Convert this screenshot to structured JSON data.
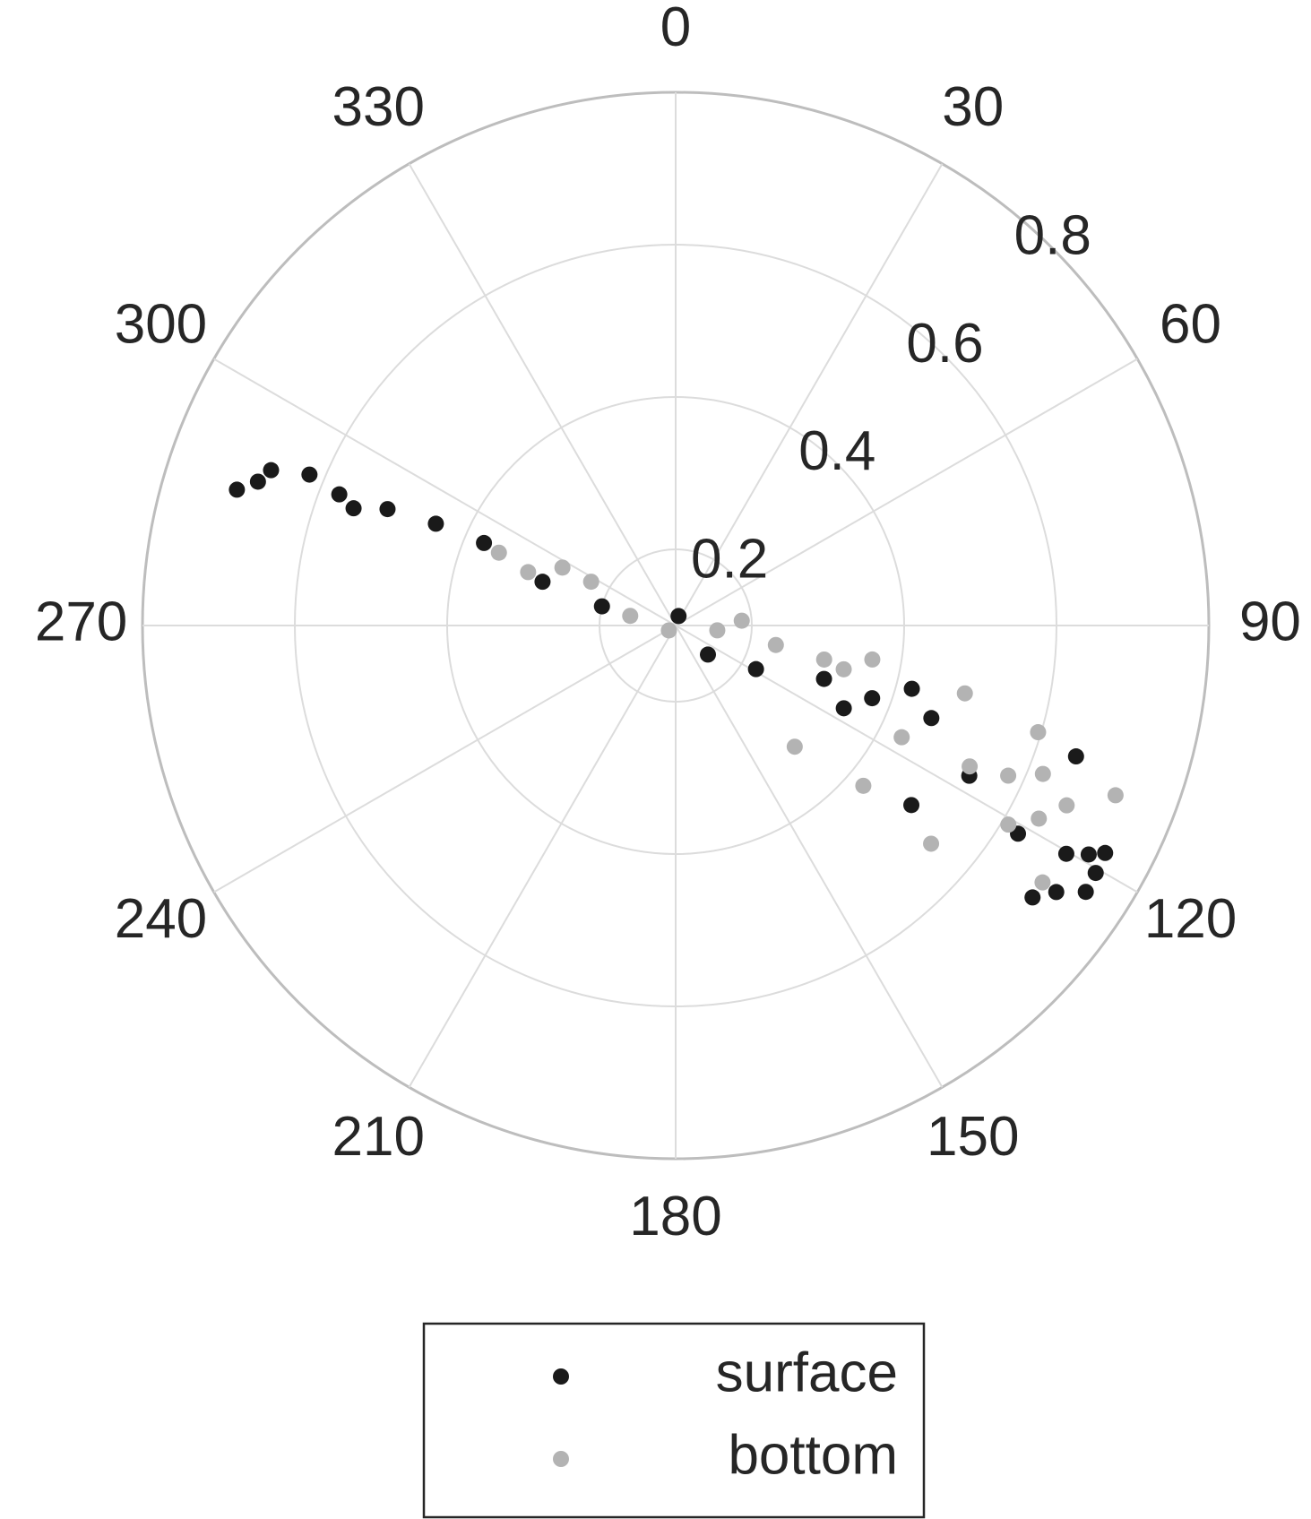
{
  "chart_data": {
    "type": "scatter",
    "polar": true,
    "theta_direction": "clockwise",
    "theta_zero": "top",
    "rlim": [
      0.1,
      0.8
    ],
    "rticks": [
      0.2,
      0.4,
      0.6,
      0.8
    ],
    "thetaticks": [
      0,
      30,
      60,
      90,
      120,
      150,
      180,
      210,
      240,
      270,
      300,
      330
    ],
    "grid": true,
    "legend_position": "bottom",
    "series": [
      {
        "name": "surface",
        "color": "#1a1a1a",
        "theta": [
          287.2,
          291,
          292.4,
          291.3,
          292,
          293,
          293.3,
          288.2,
          284.6,
          17,
          132,
          118.5,
          109.8,
          110.3,
          105,
          109.9,
          117.1,
          121.3,
          120.3,
          120.5,
          117.9,
          123,
          127.3,
          108.1,
          127.3,
          116.2,
          289,
          290,
          125,
          119
        ],
        "r": [
          0.703,
          0.669,
          0.62,
          0.574,
          0.508,
          0.442,
          0.374,
          0.284,
          0.2,
          0.113,
          0.157,
          0.22,
          0.307,
          0.375,
          0.421,
          0.457,
          0.533,
          0.626,
          0.694,
          0.74,
          0.738,
          0.742,
          0.689,
          0.653,
          0.489,
          0.346,
          0.68,
          0.55,
          0.71,
          0.72
        ]
      },
      {
        "name": "bottom",
        "color": "#b3b3b3",
        "theta": [
          292.4,
          289.9,
          297.1,
          297.4,
          282,
          234,
          96.6,
          85.8,
          101,
          102.9,
          99.8,
          135.5,
          130.5,
          130.5,
          103.2,
          115.6,
          114.3,
          106.4,
          114.7,
          111.1,
          125,
          120.9,
          116.3,
          104.6,
          118,
          112
        ],
        "r": [
          0.351,
          0.306,
          0.267,
          0.225,
          0.161,
          0.111,
          0.155,
          0.187,
          0.234,
          0.3,
          0.362,
          0.323,
          0.424,
          0.541,
          0.49,
          0.528,
          0.579,
          0.596,
          0.665,
          0.719,
          0.688,
          0.609,
          0.431,
          0.328,
          0.64,
          0.62
        ]
      }
    ]
  }
}
